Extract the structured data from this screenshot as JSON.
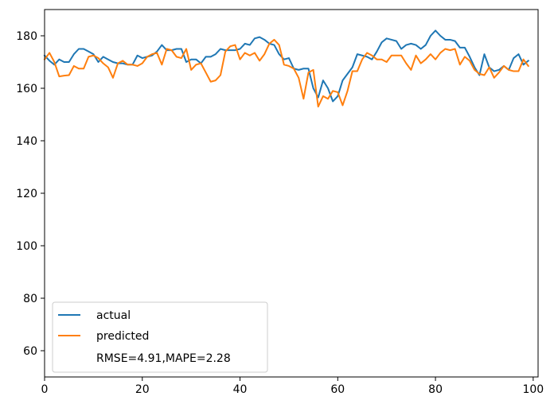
{
  "chart_data": {
    "type": "line",
    "title": "",
    "xlabel": "",
    "ylabel": "",
    "xlim": [
      0,
      101
    ],
    "ylim": [
      50,
      190
    ],
    "x_ticks": [
      0,
      20,
      40,
      60,
      80,
      100
    ],
    "y_ticks": [
      60,
      80,
      100,
      120,
      140,
      160,
      180
    ],
    "grid": false,
    "legend_position": "lower-left",
    "annotation": "RMSE=4.91,MAPE=2.28",
    "series": [
      {
        "name": "actual",
        "color": "#1f77b4",
        "values": [
          172.5,
          170.5,
          169.0,
          171.0,
          170.0,
          170.0,
          173.0,
          175.0,
          175.0,
          174.0,
          173.0,
          170.0,
          172.0,
          171.0,
          170.0,
          169.5,
          169.5,
          169.0,
          169.0,
          172.5,
          171.5,
          172.0,
          172.5,
          174.0,
          176.5,
          174.5,
          174.5,
          175.0,
          175.0,
          170.0,
          171.0,
          171.0,
          169.5,
          172.0,
          172.0,
          173.0,
          175.0,
          174.5,
          174.5,
          174.5,
          175.0,
          177.0,
          176.5,
          179.0,
          179.5,
          178.5,
          177.0,
          176.5,
          173.0,
          171.0,
          171.5,
          167.5,
          167.0,
          167.5,
          167.5,
          160.0,
          156.5,
          163.0,
          160.0,
          155.0,
          157.0,
          163.0,
          165.5,
          168.0,
          173.0,
          172.5,
          172.0,
          171.0,
          174.0,
          177.5,
          179.0,
          178.5,
          178.0,
          175.0,
          176.5,
          177.0,
          176.5,
          175.0,
          176.5,
          180.0,
          182.0,
          180.0,
          178.5,
          178.5,
          178.0,
          175.5,
          175.5,
          172.0,
          168.0,
          165.0,
          173.0,
          168.0,
          166.5,
          167.0,
          168.5,
          167.0,
          171.5,
          173.0,
          169.0,
          170.5
        ]
      },
      {
        "name": "predicted",
        "color": "#ff7f0e",
        "values": [
          171.0,
          173.5,
          170.0,
          164.5,
          164.8,
          165.0,
          168.5,
          167.5,
          167.5,
          172.0,
          172.5,
          171.5,
          169.5,
          168.0,
          164.0,
          169.5,
          170.5,
          169.0,
          169.0,
          168.5,
          169.5,
          172.0,
          173.0,
          173.5,
          169.0,
          175.0,
          174.5,
          172.0,
          171.5,
          175.0,
          167.0,
          169.0,
          169.5,
          166.0,
          162.5,
          163.0,
          165.0,
          174.0,
          176.0,
          176.5,
          171.0,
          173.5,
          172.5,
          173.5,
          170.5,
          173.0,
          177.0,
          178.5,
          176.5,
          169.0,
          168.5,
          167.5,
          164.0,
          156.0,
          166.0,
          167.0,
          153.0,
          157.0,
          156.0,
          159.0,
          158.5,
          153.5,
          159.0,
          166.5,
          166.5,
          171.0,
          173.5,
          172.5,
          171.0,
          171.0,
          170.0,
          172.5,
          172.5,
          172.5,
          169.5,
          167.0,
          172.5,
          169.5,
          171.0,
          173.0,
          171.0,
          173.5,
          175.0,
          174.5,
          175.0,
          169.0,
          172.0,
          170.5,
          167.0,
          165.5,
          165.0,
          168.0,
          164.0,
          166.0,
          168.5,
          167.0,
          166.5,
          166.5,
          171.0,
          168.5
        ]
      }
    ]
  }
}
